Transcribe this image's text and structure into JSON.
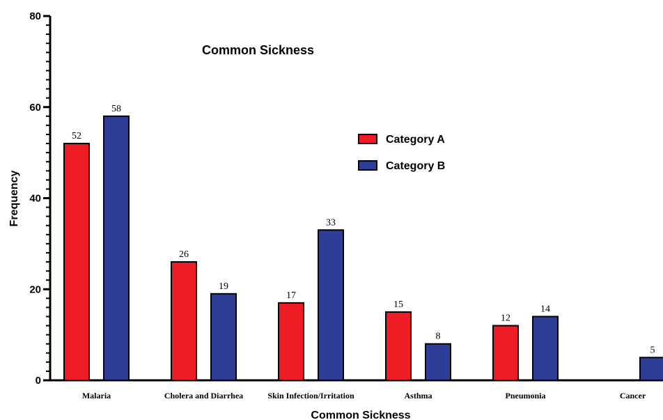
{
  "chart_data": {
    "type": "bar",
    "title": "Common Sickness",
    "xlabel": "Common Sickness",
    "ylabel": "Frequency",
    "ylim": [
      0,
      80
    ],
    "yticks": [
      "0",
      "20",
      "40",
      "60",
      "80"
    ],
    "categories": [
      "Malaria",
      "Cholera and Diarrhea",
      "Skin Infection/Irritation",
      "Asthma",
      "Pneumonia",
      "Cancer"
    ],
    "series": [
      {
        "name": "Category A",
        "color": "#ee1c24",
        "values": [
          52,
          26,
          17,
          15,
          12,
          null
        ]
      },
      {
        "name": "Category B",
        "color": "#2e3d96",
        "values": [
          58,
          19,
          33,
          8,
          14,
          5
        ]
      }
    ],
    "grid": false,
    "legend_position": "top-right"
  }
}
